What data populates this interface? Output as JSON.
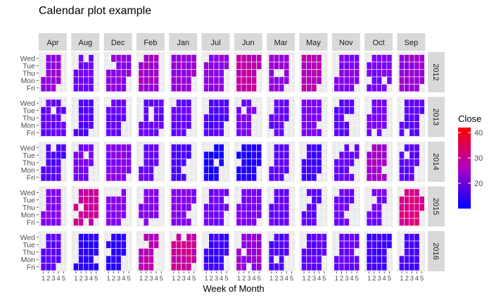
{
  "chart_data": {
    "type": "heatmap",
    "title": "Calendar plot example",
    "xlabel": "Week of Month",
    "ylabel": "",
    "x_ticks": [
      "1",
      "2",
      "3",
      "4",
      "5"
    ],
    "y_ticks": [
      "Wed",
      "Tue",
      "Thu",
      "Mon",
      "Fri"
    ],
    "column_facets": [
      "Apr",
      "Aug",
      "Dec",
      "Feb",
      "Jan",
      "Jul",
      "Jun",
      "Mar",
      "May",
      "Nov",
      "Oct",
      "Sep"
    ],
    "row_facets": [
      "2012",
      "2013",
      "2014",
      "2015",
      "2016"
    ],
    "legend": {
      "title": "Close",
      "position": "right",
      "ticks": [
        20,
        30,
        40
      ],
      "range": [
        10,
        42
      ],
      "colors": {
        "low": "#0000ff",
        "high": "#ff0000"
      }
    },
    "approx_close_by_year_month": {
      "2012": {
        "Apr": 25,
        "Aug": 21,
        "Dec": 24,
        "Feb": 26,
        "Jan": 25,
        "Jul": 24,
        "Jun": 29,
        "Mar": 25,
        "May": 28,
        "Nov": 23,
        "Oct": 22,
        "Sep": 25
      },
      "2013": {
        "Apr": 20,
        "Aug": 18,
        "Dec": 20,
        "Feb": 20,
        "Jan": 20,
        "Jul": 18,
        "Jun": 22,
        "Mar": 20,
        "May": 22,
        "Nov": 19,
        "Oct": 22,
        "Sep": 19
      },
      "2014": {
        "Apr": 18,
        "Aug": 22,
        "Dec": 23,
        "Feb": 20,
        "Jan": 17,
        "Jul": 12,
        "Jun": 13,
        "Mar": 19,
        "May": 16,
        "Nov": 20,
        "Oct": 26,
        "Sep": 19
      },
      "2015": {
        "Apr": 23,
        "Aug": 30,
        "Dec": 23,
        "Feb": 23,
        "Jan": 23,
        "Jul": 21,
        "Jun": 22,
        "Mar": 20,
        "May": 19,
        "Nov": 21,
        "Oct": 22,
        "Sep": 32
      },
      "2016": {
        "Apr": 19,
        "Aug": 14,
        "Dec": 14,
        "Feb": 28,
        "Jan": 30,
        "Jul": 16,
        "Jun": 25,
        "Mar": 18,
        "May": 19,
        "Nov": 20,
        "Oct": 16,
        "Sep": 17
      }
    },
    "colors": {
      "panel_bg": "#ebebeb",
      "strip_bg": "#d9d9d9",
      "grid": "#ffffff",
      "text": "#4d4d4d"
    },
    "grid": true
  }
}
